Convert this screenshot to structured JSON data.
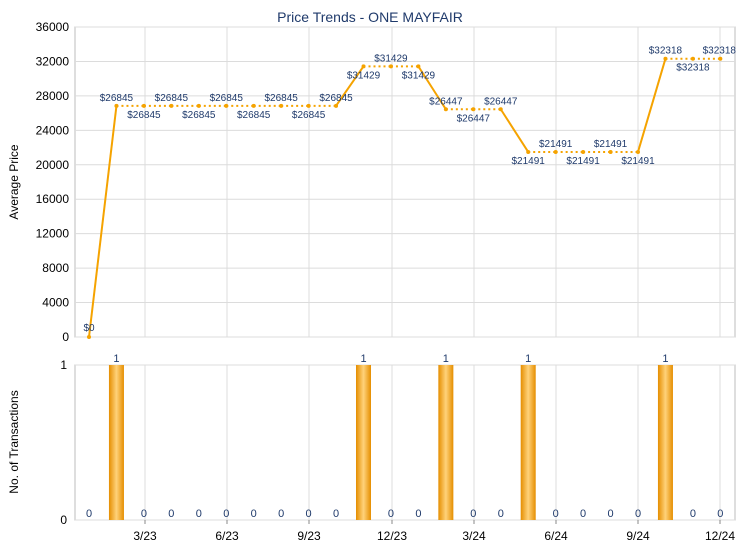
{
  "chart_data": [
    {
      "type": "line",
      "title": "Price Trends - ONE MAYFAIR",
      "ylabel": "Average Price",
      "ylim": [
        0,
        36000
      ],
      "yticks": [
        "0",
        "4000",
        "8000",
        "12000",
        "16000",
        "20000",
        "24000",
        "28000",
        "32000",
        "36000"
      ],
      "grid": true,
      "months": 24,
      "series": [
        {
          "color": "#f5a300",
          "values": [
            0,
            26845,
            26845,
            26845,
            26845,
            26845,
            26845,
            26845,
            26845,
            26845,
            31429,
            31429,
            31429,
            26447,
            26447,
            26447,
            21491,
            21491,
            21491,
            21491,
            21491,
            32318,
            32318,
            32318
          ],
          "labels": [
            "$0",
            "$26845",
            "$26845",
            "$26845",
            "$26845",
            "$26845",
            "$26845",
            "$26845",
            "$26845",
            "$26845",
            "$31429",
            "$31429",
            "$31429",
            "$26447",
            "$26447",
            "$26447",
            "$21491",
            "$21491",
            "$21491",
            "$21491",
            "$21491",
            "$32318",
            "$32318",
            "$32318"
          ]
        }
      ]
    },
    {
      "type": "bar",
      "ylabel": "No. of Transactions",
      "ylim": [
        0,
        1
      ],
      "yticks": [
        "0",
        "1"
      ],
      "xticks": [
        "3/23",
        "6/23",
        "9/23",
        "12/23",
        "3/24",
        "6/24",
        "9/24",
        "12/24"
      ],
      "bar_color": "#f5a300",
      "values": [
        0,
        1,
        0,
        0,
        0,
        0,
        0,
        0,
        0,
        0,
        1,
        0,
        0,
        1,
        0,
        0,
        1,
        0,
        0,
        0,
        0,
        1,
        0,
        0
      ],
      "labels": [
        "0",
        "1",
        "0",
        "0",
        "0",
        "0",
        "0",
        "0",
        "0",
        "0",
        "1",
        "0",
        "0",
        "1",
        "0",
        "0",
        "1",
        "0",
        "0",
        "0",
        "0",
        "1",
        "0",
        "0"
      ]
    }
  ]
}
